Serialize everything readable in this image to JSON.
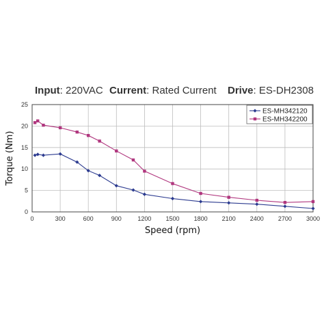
{
  "header": {
    "input_label": "Input",
    "input_value": ": 220VAC",
    "current_label": "Current",
    "current_value": ": Rated Current",
    "drive_label": "Drive",
    "drive_value": ": ES-DH2308"
  },
  "chart_data": {
    "type": "line",
    "xlabel": "Speed (rpm)",
    "ylabel": "Torque (Nm)",
    "xlim": [
      0,
      3000
    ],
    "ylim": [
      0,
      25
    ],
    "x_ticks": [
      0,
      300,
      600,
      900,
      1200,
      1500,
      1800,
      2100,
      2400,
      2700,
      3000
    ],
    "y_ticks": [
      0,
      5,
      10,
      15,
      20,
      25
    ],
    "grid": true,
    "legend_position": "top-right",
    "series": [
      {
        "name": "ES-MH342120",
        "color": "#2b3a8f",
        "marker": "diamond",
        "x": [
          30,
          60,
          120,
          300,
          480,
          600,
          720,
          900,
          1080,
          1200,
          1500,
          1800,
          2100,
          2400,
          2700,
          3000
        ],
        "y": [
          13.2,
          13.4,
          13.2,
          13.5,
          11.6,
          9.6,
          8.5,
          6.1,
          5.1,
          4.1,
          3.1,
          2.4,
          2.1,
          1.8,
          1.3,
          0.8
        ]
      },
      {
        "name": "ES-MH342200",
        "color": "#b0367e",
        "marker": "square",
        "x": [
          30,
          60,
          120,
          300,
          480,
          600,
          720,
          900,
          1080,
          1200,
          1500,
          1800,
          2100,
          2400,
          2700,
          3000
        ],
        "y": [
          20.8,
          21.2,
          20.2,
          19.6,
          18.6,
          17.8,
          16.5,
          14.2,
          12.1,
          9.5,
          6.6,
          4.3,
          3.4,
          2.7,
          2.2,
          2.4
        ]
      }
    ]
  }
}
